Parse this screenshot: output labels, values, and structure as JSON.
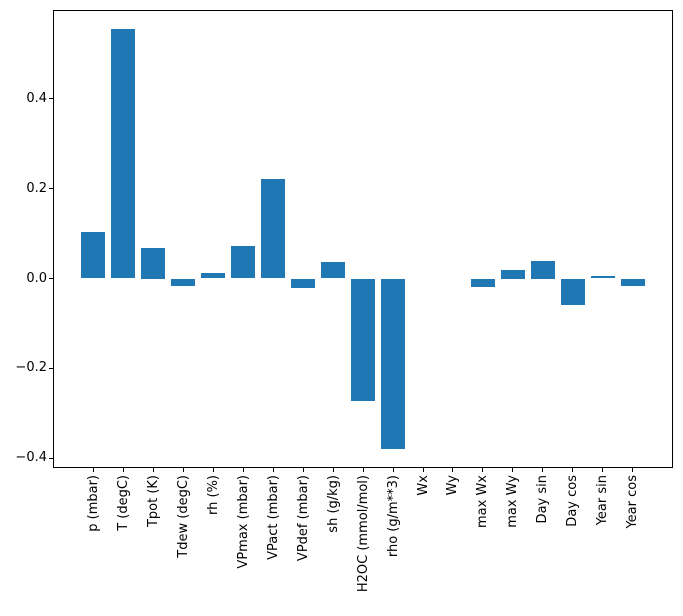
{
  "figure": {
    "background_color": "#ffffff",
    "axis_color": "#000000",
    "text_color": "#000000"
  },
  "chart_data": {
    "type": "bar",
    "title": "",
    "xlabel": "",
    "ylabel": "",
    "bar_color": "#1f77b4",
    "grid": false,
    "legend": false,
    "x_tick_rotation_deg": 90,
    "categories": [
      "p (mbar)",
      "T (degC)",
      "Tpot (K)",
      "Tdew (degC)",
      "rh (%)",
      "VPmax (mbar)",
      "VPact (mbar)",
      "VPdef (mbar)",
      "sh (g/kg)",
      "H2OC (mmol/mol)",
      "rho (g/m**3)",
      "Wx",
      "Wy",
      "max Wx",
      "max Wy",
      "Day sin",
      "Day cos",
      "Year sin",
      "Year cos"
    ],
    "values": [
      0.103,
      0.555,
      0.068,
      -0.016,
      0.013,
      0.073,
      0.222,
      -0.022,
      0.036,
      -0.273,
      -0.379,
      0.0,
      0.0,
      -0.018,
      0.02,
      0.039,
      -0.06,
      0.005,
      -0.017
    ],
    "yticks": [
      0.4,
      0.2,
      0.0,
      -0.2,
      -0.4
    ],
    "ylim": [
      -0.422,
      0.598
    ],
    "xlim": [
      -1.34,
      19.34
    ],
    "bar_rel_width": 0.8
  }
}
